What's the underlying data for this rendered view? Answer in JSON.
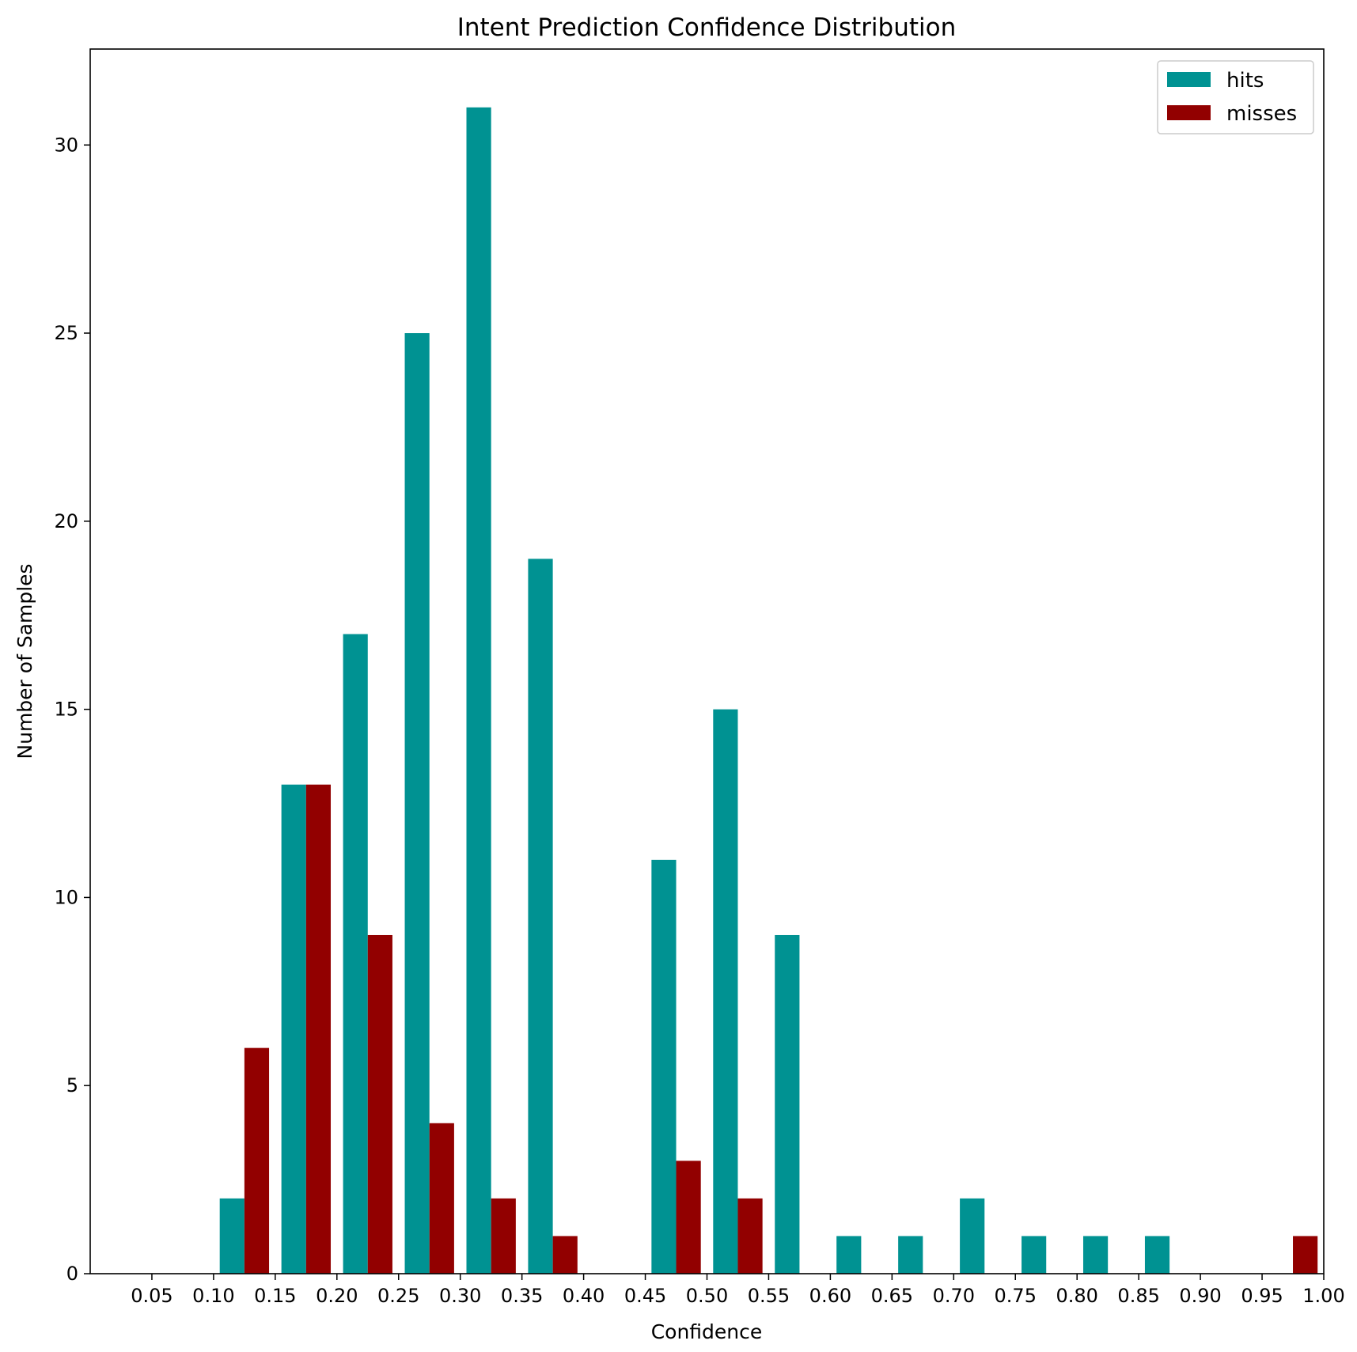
{
  "chart_data": {
    "type": "bar",
    "title": "Intent Prediction Confidence Distribution",
    "xlabel": "Confidence",
    "ylabel": "Number of Samples",
    "x_ticks": [
      "0.05",
      "0.10",
      "0.15",
      "0.20",
      "0.25",
      "0.30",
      "0.35",
      "0.40",
      "0.45",
      "0.50",
      "0.55",
      "0.60",
      "0.65",
      "0.70",
      "0.75",
      "0.80",
      "0.85",
      "0.90",
      "0.95",
      "1.00"
    ],
    "y_ticks": [
      "0",
      "5",
      "10",
      "15",
      "20",
      "25",
      "30"
    ],
    "xlim": [
      0.0,
      1.0
    ],
    "ylim": [
      0,
      32.55
    ],
    "bin_edges": [
      0.1,
      0.15,
      0.2,
      0.25,
      0.3,
      0.35,
      0.4,
      0.45,
      0.5,
      0.55,
      0.6,
      0.65,
      0.7,
      0.75,
      0.8,
      0.85,
      0.9,
      0.95
    ],
    "series": [
      {
        "name": "hits",
        "color": "#009292",
        "values": [
          2,
          13,
          17,
          25,
          31,
          19,
          0,
          11,
          15,
          9,
          1,
          1,
          2,
          1,
          1,
          1,
          0,
          0
        ]
      },
      {
        "name": "misses",
        "color": "#920000",
        "values": [
          6,
          13,
          9,
          4,
          2,
          1,
          0,
          3,
          2,
          0,
          0,
          0,
          0,
          0,
          0,
          0,
          0,
          1
        ]
      }
    ],
    "legend_position": "top-right",
    "grid": false
  }
}
